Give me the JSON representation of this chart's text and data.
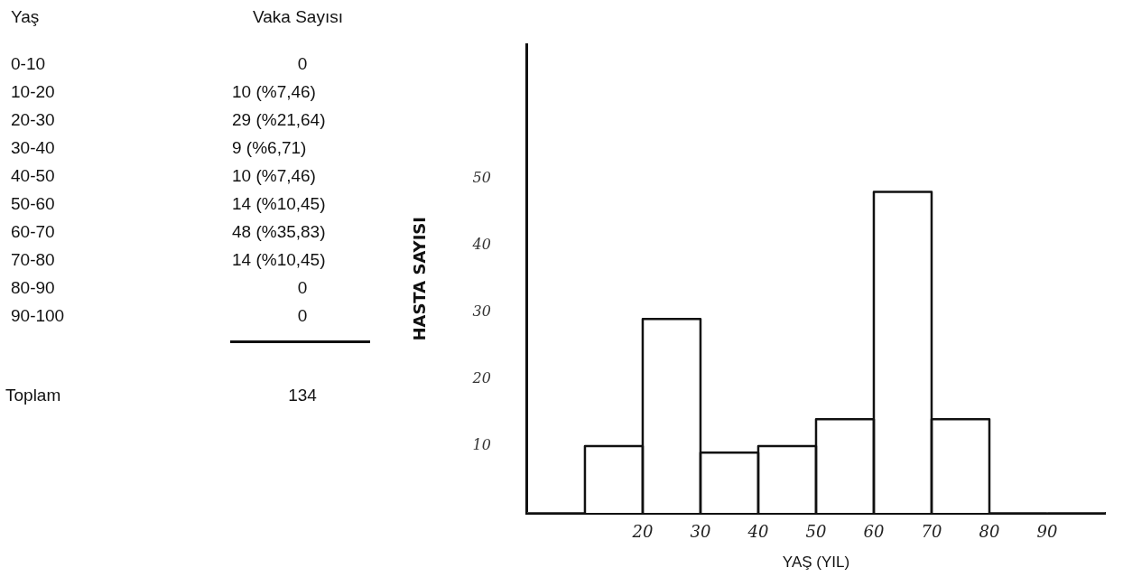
{
  "chart_data": [
    {
      "type": "other",
      "categories": [
        "0-10",
        "10-20",
        "20-30",
        "30-40",
        "40-50",
        "50-60",
        "60-70",
        "70-80",
        "80-90",
        "90-100"
      ],
      "values": [
        0,
        10,
        29,
        9,
        10,
        14,
        48,
        14,
        0,
        0
      ],
      "value_labels": [
        "0",
        "10 (%7,46)",
        "29 (%21,64)",
        "9 (%6,71)",
        "10 (%7,46)",
        "14 (%10,45)",
        "48 (%35,83)",
        "14 (%10,45)",
        "0",
        "0"
      ],
      "annotations": [
        "Yaş",
        "Vaka Sayısı",
        "Toplam",
        "134"
      ]
    },
    {
      "type": "histogram",
      "xlabel": "YAŞ (YIL)",
      "ylabel": "HASTA SAYISI",
      "bins": [
        0,
        10,
        20,
        30,
        40,
        50,
        60,
        70,
        80,
        90,
        100
      ],
      "values": [
        0,
        10,
        29,
        9,
        10,
        14,
        48,
        14,
        0,
        0
      ],
      "color": "#ffffff",
      "xlim": [
        0,
        100
      ],
      "xticks": [
        20,
        30,
        40,
        50,
        60,
        70,
        80,
        90
      ],
      "ylim": [
        0,
        70
      ],
      "yticks": [
        10,
        20,
        30,
        40,
        50
      ],
      "grid": false,
      "legend": false
    }
  ]
}
